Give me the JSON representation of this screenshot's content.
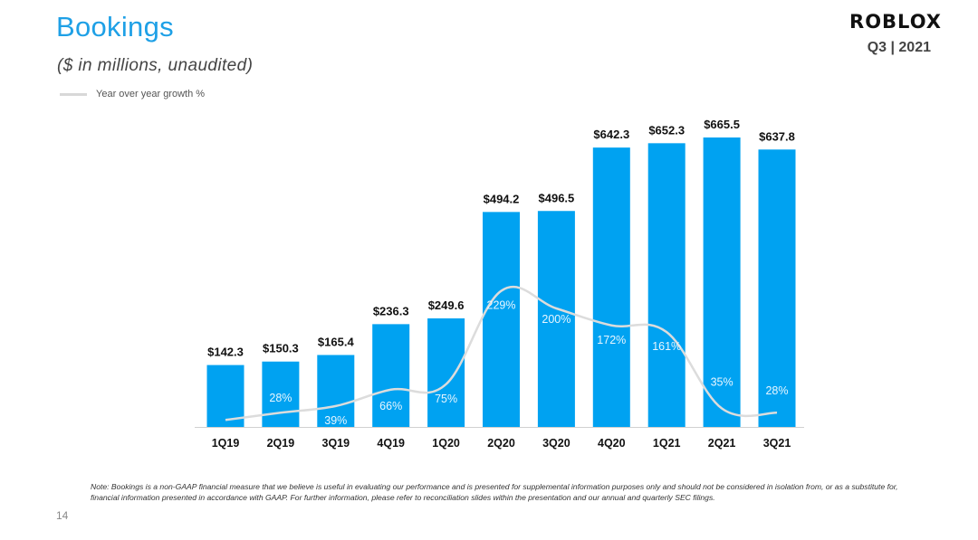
{
  "header": {
    "title": "Bookings",
    "subtitle": "($ in millions,  unaudited)",
    "logo_text": "ROBLOX",
    "period": "Q3 | 2021"
  },
  "legend": {
    "label": "Year over year growth %",
    "swatch_color": "#d8d8d8"
  },
  "colors": {
    "bar": "#00a2f1",
    "line": "#dcdcdc",
    "title": "#1ea0e6"
  },
  "chart_data": {
    "type": "bar",
    "categories": [
      "1Q19",
      "2Q19",
      "3Q19",
      "4Q19",
      "1Q20",
      "2Q20",
      "3Q20",
      "4Q20",
      "1Q21",
      "2Q21",
      "3Q21"
    ],
    "series": [
      {
        "values": [
          142.3,
          150.3,
          165.4,
          236.3,
          249.6,
          494.2,
          496.5,
          642.3,
          652.3,
          665.5,
          637.8
        ],
        "data_labels": [
          "$142.3",
          "$150.3",
          "$165.4",
          "$236.3",
          "$249.6",
          "$494.2",
          "$496.5",
          "$642.3",
          "$652.3",
          "$665.5",
          "$637.8"
        ]
      },
      {
        "name": "Year over year growth %",
        "type": "line",
        "values": [
          null,
          28,
          39,
          66,
          75,
          229,
          200,
          172,
          161,
          35,
          28
        ],
        "data_labels": [
          "",
          "28%",
          "39%",
          "66%",
          "75%",
          "229%",
          "200%",
          "172%",
          "161%",
          "35%",
          "28%"
        ]
      }
    ],
    "ylim": [
      0,
      700
    ],
    "grid": false,
    "legend_position": "top-left"
  },
  "footer": {
    "note": "Note: Bookings is a non-GAAP financial measure that we believe is useful in evaluating our performance and is presented for supplemental information purposes only and should not be considered in isolation from, or as a substitute for, financial information presented in accordance with GAAP. For further information, please refer to reconciliation slides within the presentation and our annual and quarterly SEC filings.",
    "page_number": "14"
  }
}
